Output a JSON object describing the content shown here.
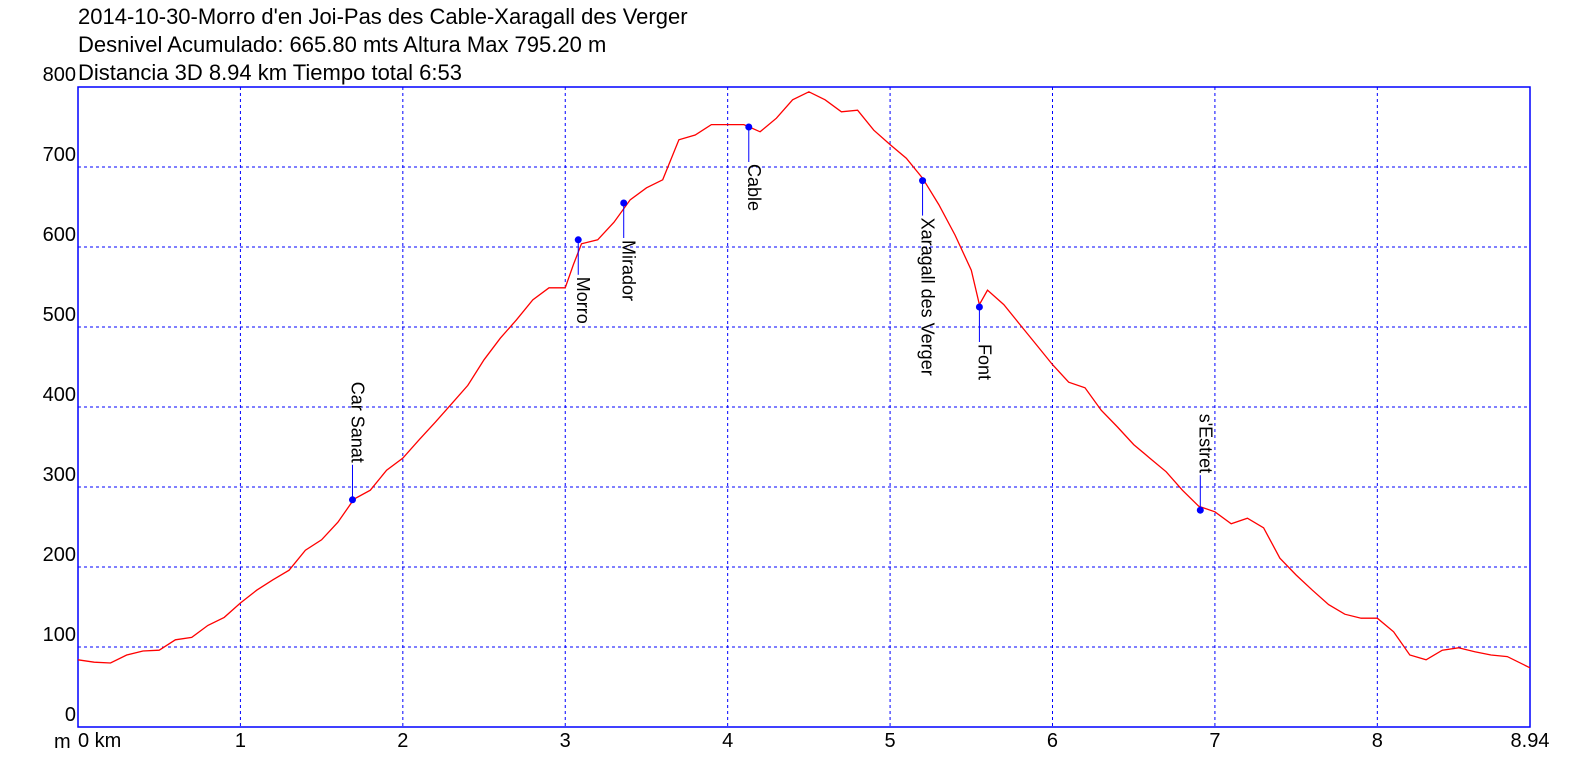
{
  "chart_data": {
    "type": "line",
    "title_lines": [
      "2014-10-30-Morro d'en Joi-Pas des Cable-Xaragall des Verger",
      "Desnivel Acumulado: 665.80 mts  Altura Max 795.20 m",
      "Distancia 3D 8.94 km  Tiempo total 6:53"
    ],
    "ylabel": "m",
    "x": [
      0,
      0.1,
      0.2,
      0.3,
      0.4,
      0.5,
      0.6,
      0.7,
      0.8,
      0.9,
      1.0,
      1.1,
      1.2,
      1.3,
      1.4,
      1.5,
      1.6,
      1.7,
      1.8,
      1.9,
      2.0,
      2.1,
      2.2,
      2.3,
      2.4,
      2.5,
      2.6,
      2.7,
      2.8,
      2.9,
      3.0,
      3.05,
      3.1,
      3.2,
      3.3,
      3.4,
      3.5,
      3.6,
      3.7,
      3.8,
      3.9,
      4.0,
      4.1,
      4.2,
      4.3,
      4.4,
      4.5,
      4.6,
      4.7,
      4.8,
      4.9,
      5.0,
      5.1,
      5.2,
      5.3,
      5.4,
      5.5,
      5.55,
      5.6,
      5.7,
      5.8,
      5.9,
      6.0,
      6.1,
      6.2,
      6.3,
      6.4,
      6.5,
      6.6,
      6.7,
      6.8,
      6.9,
      7.0,
      7.1,
      7.2,
      7.3,
      7.4,
      7.5,
      7.6,
      7.7,
      7.8,
      7.9,
      8.0,
      8.1,
      8.2,
      8.3,
      8.4,
      8.5,
      8.6,
      8.7,
      8.8,
      8.94
    ],
    "series": [
      {
        "color": "#ff0000",
        "values": [
          84,
          81,
          80,
          90,
          95,
          96,
          109,
          112,
          127,
          137,
          155,
          171,
          184,
          196,
          221,
          234,
          256,
          285,
          296,
          321,
          336,
          359,
          381,
          404,
          427,
          459,
          486,
          509,
          534,
          549,
          549,
          578,
          604,
          609,
          631,
          659,
          674,
          684,
          734,
          740,
          753,
          753,
          753,
          744,
          761,
          784,
          794,
          784,
          769,
          771,
          746,
          728,
          711,
          686,
          653,
          615,
          571,
          528,
          546,
          528,
          503,
          478,
          453,
          431,
          424,
          396,
          375,
          353,
          336,
          319,
          296,
          276,
          269,
          254,
          261,
          249,
          211,
          190,
          171,
          153,
          141,
          136,
          136,
          119,
          90,
          84,
          96,
          99,
          94,
          90,
          88,
          74
        ]
      }
    ],
    "waypoints": [
      {
        "name": "Car Sanat",
        "x": 1.69,
        "y": 284,
        "label_position": "above"
      },
      {
        "name": "Morro",
        "x": 3.08,
        "y": 609,
        "label_position": "below"
      },
      {
        "name": "Mirador",
        "x": 3.36,
        "y": 655,
        "label_position": "below"
      },
      {
        "name": "Cable",
        "x": 4.13,
        "y": 750,
        "label_position": "below"
      },
      {
        "name": "Xaragall des Verger",
        "x": 5.2,
        "y": 683,
        "label_position": "below"
      },
      {
        "name": "Font",
        "x": 5.55,
        "y": 525,
        "label_position": "below"
      },
      {
        "name": "s'Estret",
        "x": 6.91,
        "y": 271,
        "label_position": "above"
      }
    ],
    "waypoint_color": "#0000ff",
    "axis_color": "#0000ff",
    "xlim": [
      0,
      8.94
    ],
    "ylim": [
      0,
      800
    ],
    "xticks": [
      {
        "value": 0,
        "label": "0 km"
      },
      1,
      2,
      3,
      4,
      5,
      6,
      7,
      8,
      8.94
    ],
    "yticks": [
      0,
      100,
      200,
      300,
      400,
      500,
      600,
      700,
      800
    ],
    "grid": true
  }
}
